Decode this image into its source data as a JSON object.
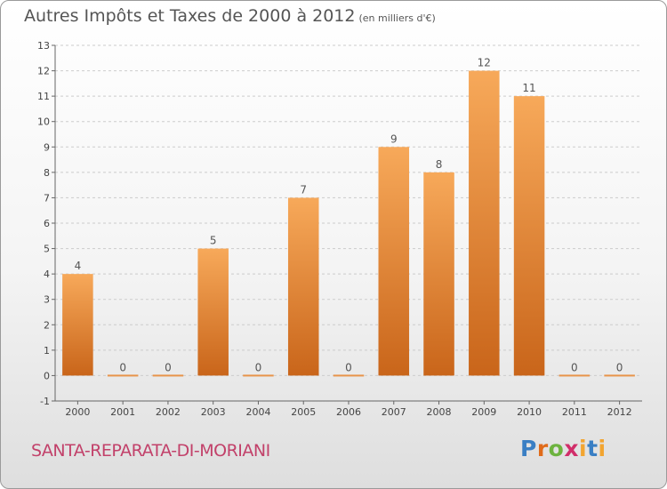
{
  "header": {
    "title": "Autres Impôts et Taxes de 2000 à 2012",
    "unit": "(en milliers d'€)"
  },
  "footer": {
    "commune": "SANTA-REPARATA-DI-MORIANI",
    "logo": "Proxiti"
  },
  "colors": {
    "bar_top": "#f7a95a",
    "bar_bottom": "#c9651a",
    "zero_bar": "#e8944a",
    "axis": "#666666",
    "grid": "#cccccc"
  },
  "chart_data": {
    "type": "bar",
    "categories": [
      "2000",
      "2001",
      "2002",
      "2003",
      "2004",
      "2005",
      "2006",
      "2007",
      "2008",
      "2009",
      "2010",
      "2011",
      "2012"
    ],
    "values": [
      4,
      0,
      0,
      5,
      0,
      7,
      0,
      9,
      8,
      12,
      11,
      0,
      0
    ],
    "ylim": [
      -1,
      13
    ],
    "yticks": [
      -1,
      0,
      1,
      2,
      3,
      4,
      5,
      6,
      7,
      8,
      9,
      10,
      11,
      12,
      13
    ],
    "grid": true
  }
}
